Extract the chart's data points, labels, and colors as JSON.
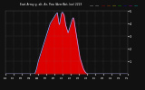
{
  "title": "East Array g, alt, Az, Pow (Aver/Act, kw) 2223",
  "background_color": "#111111",
  "plot_bg_color": "#111111",
  "grid_color": "#888888",
  "bar_color": "#dd0000",
  "avg_line_color": "#aaaaff",
  "n_points": 288,
  "ylim": [
    0,
    5
  ],
  "ytick_vals": [
    1,
    2,
    3,
    4,
    5
  ],
  "ytick_labels": [
    "1",
    "2",
    "3",
    "4",
    "5"
  ],
  "actual_values": [
    0,
    0,
    0,
    0,
    0,
    0,
    0,
    0,
    0,
    0,
    0,
    0,
    0,
    0,
    0,
    0,
    0,
    0,
    0,
    0,
    0,
    0,
    0,
    0,
    0,
    0,
    0,
    0,
    0,
    0,
    0,
    0,
    0,
    0,
    0,
    0,
    0,
    0,
    0,
    0,
    0,
    0,
    0,
    0,
    0,
    0,
    0,
    0,
    0,
    0,
    0,
    0,
    0,
    0,
    0,
    0,
    0,
    0,
    0,
    0,
    0,
    0,
    0,
    0,
    0,
    0,
    0,
    0,
    0,
    0,
    0,
    0,
    0,
    0.05,
    0.1,
    0.2,
    0.3,
    0.4,
    0.5,
    0.7,
    0.8,
    0.9,
    1.0,
    1.1,
    1.2,
    1.3,
    1.4,
    1.5,
    1.6,
    1.7,
    1.8,
    1.9,
    2.0,
    2.1,
    2.2,
    2.3,
    2.4,
    2.5,
    2.6,
    2.7,
    2.8,
    2.9,
    3.0,
    3.1,
    3.2,
    3.3,
    3.4,
    3.5,
    3.6,
    3.7,
    3.8,
    3.9,
    4.0,
    4.05,
    4.1,
    4.15,
    4.2,
    4.25,
    4.3,
    4.35,
    4.4,
    4.45,
    4.5,
    4.55,
    4.6,
    4.65,
    4.7,
    4.75,
    4.8,
    4.82,
    4.84,
    4.5,
    4.3,
    4.1,
    4.0,
    3.9,
    4.1,
    4.3,
    4.5,
    4.7,
    4.8,
    4.85,
    4.9,
    4.9,
    4.85,
    4.8,
    4.75,
    4.7,
    4.5,
    4.3,
    4.1,
    3.9,
    3.8,
    3.7,
    3.6,
    3.5,
    3.4,
    3.3,
    3.4,
    3.5,
    3.6,
    3.7,
    3.8,
    3.9,
    4.0,
    4.1,
    4.2,
    4.3,
    4.4,
    4.45,
    4.5,
    4.4,
    4.3,
    4.1,
    3.9,
    3.7,
    3.5,
    3.3,
    3.1,
    2.9,
    2.7,
    2.5,
    2.3,
    2.1,
    1.9,
    1.7,
    1.5,
    1.3,
    1.2,
    1.1,
    1.0,
    0.9,
    0.8,
    0.7,
    0.6,
    0.5,
    0.4,
    0.35,
    0.3,
    0.25,
    0.2,
    0.15,
    0.1,
    0.08,
    0.06,
    0.04,
    0.02,
    0.01,
    0,
    0,
    0,
    0,
    0,
    0,
    0,
    0,
    0,
    0,
    0,
    0,
    0,
    0,
    0,
    0,
    0,
    0,
    0,
    0,
    0,
    0,
    0,
    0,
    0,
    0,
    0,
    0,
    0,
    0,
    0,
    0,
    0,
    0,
    0,
    0,
    0,
    0,
    0,
    0,
    0,
    0,
    0,
    0,
    0,
    0,
    0,
    0,
    0,
    0,
    0,
    0,
    0,
    0,
    0,
    0,
    0,
    0,
    0,
    0,
    0,
    0,
    0,
    0,
    0,
    0,
    0,
    0,
    0,
    0,
    0,
    0,
    0,
    0,
    0,
    0,
    0,
    0,
    0,
    0,
    0,
    0,
    0,
    0,
    0,
    0,
    0,
    0,
    0,
    0,
    0,
    0,
    0,
    0,
    0,
    0,
    0,
    0,
    0,
    0
  ],
  "avg_values": [
    0,
    0,
    0,
    0,
    0,
    0,
    0,
    0,
    0,
    0,
    0,
    0,
    0,
    0,
    0,
    0,
    0,
    0,
    0,
    0,
    0,
    0,
    0,
    0,
    0,
    0,
    0,
    0,
    0,
    0,
    0,
    0,
    0,
    0,
    0,
    0,
    0,
    0,
    0,
    0,
    0,
    0,
    0,
    0,
    0,
    0,
    0,
    0,
    0,
    0,
    0,
    0,
    0,
    0,
    0,
    0,
    0,
    0,
    0,
    0,
    0,
    0,
    0,
    0,
    0,
    0,
    0,
    0,
    0,
    0,
    0,
    0,
    0,
    0.03,
    0.07,
    0.15,
    0.25,
    0.35,
    0.45,
    0.6,
    0.75,
    0.88,
    1.0,
    1.1,
    1.2,
    1.3,
    1.4,
    1.5,
    1.6,
    1.7,
    1.8,
    1.9,
    2.0,
    2.1,
    2.2,
    2.3,
    2.4,
    2.5,
    2.6,
    2.7,
    2.8,
    2.9,
    3.0,
    3.1,
    3.2,
    3.3,
    3.4,
    3.5,
    3.6,
    3.7,
    3.8,
    3.9,
    4.0,
    4.05,
    4.1,
    4.15,
    4.2,
    4.25,
    4.3,
    4.35,
    4.4,
    4.45,
    4.5,
    4.55,
    4.6,
    4.65,
    4.7,
    4.75,
    4.8,
    4.82,
    4.84,
    4.6,
    4.4,
    4.2,
    4.0,
    3.9,
    4.0,
    4.2,
    4.4,
    4.6,
    4.75,
    4.82,
    4.88,
    4.88,
    4.82,
    4.75,
    4.7,
    4.65,
    4.45,
    4.25,
    4.05,
    3.85,
    3.75,
    3.65,
    3.55,
    3.45,
    3.35,
    3.25,
    3.35,
    3.45,
    3.55,
    3.65,
    3.75,
    3.85,
    3.95,
    4.05,
    4.15,
    4.25,
    4.35,
    4.4,
    4.45,
    4.35,
    4.25,
    4.05,
    3.85,
    3.65,
    3.45,
    3.25,
    3.05,
    2.85,
    2.65,
    2.45,
    2.25,
    2.05,
    1.85,
    1.65,
    1.45,
    1.25,
    1.15,
    1.05,
    0.95,
    0.85,
    0.75,
    0.65,
    0.55,
    0.45,
    0.38,
    0.3,
    0.25,
    0.2,
    0.15,
    0.12,
    0.08,
    0.05,
    0.03,
    0.02,
    0.01,
    0,
    0,
    0,
    0,
    0,
    0,
    0,
    0,
    0,
    0,
    0,
    0,
    0,
    0,
    0,
    0,
    0,
    0,
    0,
    0,
    0,
    0,
    0,
    0,
    0,
    0,
    0,
    0,
    0,
    0,
    0,
    0,
    0,
    0,
    0,
    0,
    0,
    0,
    0,
    0,
    0,
    0,
    0,
    0,
    0,
    0,
    0,
    0,
    0,
    0,
    0,
    0,
    0,
    0,
    0,
    0,
    0,
    0,
    0,
    0,
    0,
    0,
    0,
    0,
    0,
    0,
    0,
    0,
    0,
    0,
    0,
    0,
    0,
    0,
    0,
    0,
    0,
    0,
    0,
    0,
    0,
    0,
    0,
    0,
    0,
    0,
    0,
    0,
    0,
    0,
    0,
    0,
    0,
    0,
    0,
    0,
    0,
    0,
    0,
    0,
    0
  ],
  "legend_items": [
    {
      "label": "W-H",
      "color": "#ffffff"
    },
    {
      "label": "W-H",
      "color": "#ffffff"
    },
    {
      "label": "W-H",
      "color": "#ffffff"
    },
    {
      "label": "Act",
      "color": "#ff0000"
    },
    {
      "label": "Avg",
      "color": "#0000ff"
    },
    {
      "label": "Pow",
      "color": "#ff00ff"
    },
    {
      "label": "kW",
      "color": "#00ff00"
    },
    {
      "label": "kW",
      "color": "#ffff00"
    }
  ]
}
